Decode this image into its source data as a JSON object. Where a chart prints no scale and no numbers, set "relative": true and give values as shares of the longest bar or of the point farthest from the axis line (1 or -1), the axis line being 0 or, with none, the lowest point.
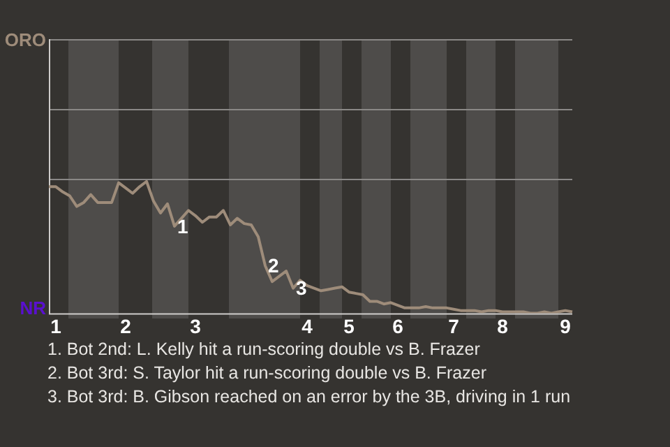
{
  "chart_data": {
    "type": "line",
    "relative": true,
    "categories": [
      null,
      "1",
      null,
      null,
      null,
      null,
      null,
      null,
      null,
      null,
      null,
      "2",
      null,
      null,
      null,
      null,
      null,
      null,
      null,
      null,
      null,
      "3",
      null,
      null,
      null,
      null,
      null,
      null,
      null,
      null,
      null,
      null,
      null,
      null,
      null,
      null,
      null,
      "4",
      null,
      null,
      null,
      null,
      null,
      "5",
      null,
      null,
      null,
      null,
      null,
      null,
      "6",
      null,
      null,
      null,
      null,
      null,
      null,
      null,
      "7",
      null,
      null,
      null,
      null,
      null,
      null,
      "8",
      null,
      null,
      null,
      null,
      null,
      null,
      null,
      null,
      "9",
      null
    ],
    "series": [
      {
        "color": "#9e8c7a",
        "values": [
          0.96,
          0.96,
          0.92,
          0.89,
          0.81,
          0.84,
          0.9,
          0.84,
          0.84,
          0.84,
          0.99,
          0.95,
          0.91,
          0.96,
          1,
          0.85,
          0.76,
          0.83,
          0.66,
          0.72,
          0.78,
          0.74,
          0.69,
          0.73,
          0.73,
          0.78,
          0.67,
          0.72,
          0.68,
          0.67,
          0.58,
          0.36,
          0.24,
          0.28,
          0.32,
          0.19,
          0.25,
          0.21,
          0.19,
          0.17,
          0.18,
          0.19,
          0.2,
          0.16,
          0.15,
          0.14,
          0.09,
          0.09,
          0.07,
          0.08,
          0.06,
          0.04,
          0.04,
          0.04,
          0.05,
          0.04,
          0.04,
          0.04,
          0.03,
          0.02,
          0.02,
          0.02,
          0.01,
          0.02,
          0.02,
          0.01,
          0.01,
          0.01,
          0.01,
          0,
          0,
          0.01,
          0,
          0.01,
          0.02,
          0.01
        ]
      }
    ],
    "marker": "none",
    "line_style": "solid",
    "annotations": [
      "ORO",
      "NR",
      {
        "text": "1",
        "y": 0.66
      },
      {
        "text": "2",
        "y": 0.36
      },
      {
        "text": "3",
        "y": 0.19
      },
      "1. Bot 2nd: L. Kelly hit a run-scoring double vs B. Frazer",
      "2. Bot 3rd: S. Taylor hit a run-scoring double vs B. Frazer",
      "3. Bot 3rd: B. Gibson reached on an error by the 3B, driving in 1 run"
    ]
  }
}
